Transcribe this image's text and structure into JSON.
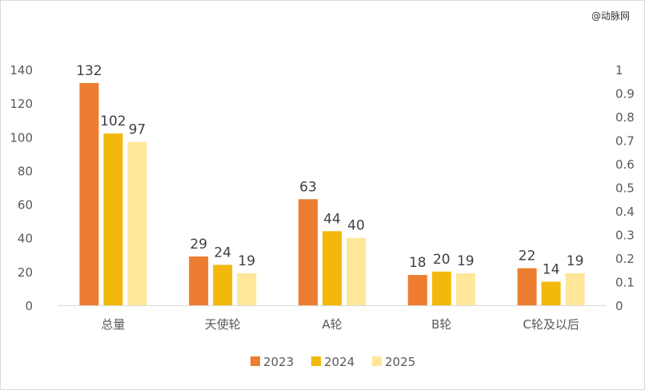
{
  "watermark": "@动脉网",
  "chart_data": {
    "type": "bar",
    "title": "",
    "xlabel": "",
    "ylabel": "",
    "categories": [
      "总量",
      "天使轮",
      "A轮",
      "B轮",
      "C轮及以后"
    ],
    "series": [
      {
        "name": "2023",
        "values": [
          132,
          29,
          63,
          18,
          22
        ],
        "color": "#ED7D31"
      },
      {
        "name": "2024",
        "values": [
          102,
          24,
          44,
          20,
          14
        ],
        "color": "#F2B90C"
      },
      {
        "name": "2025",
        "values": [
          97,
          19,
          40,
          19,
          19
        ],
        "color": "#FFE699"
      }
    ],
    "ylim": [
      0,
      140
    ],
    "y_ticks": [
      "0",
      "20",
      "40",
      "60",
      "80",
      "100",
      "120",
      "140"
    ],
    "y2lim": [
      0,
      1
    ],
    "y2_ticks": [
      "0",
      "0.1",
      "0.2",
      "0.3",
      "0.4",
      "0.5",
      "0.6",
      "0.7",
      "0.8",
      "0.9",
      "1"
    ],
    "grid": false,
    "data_labels": true,
    "legend_position": "bottom"
  }
}
